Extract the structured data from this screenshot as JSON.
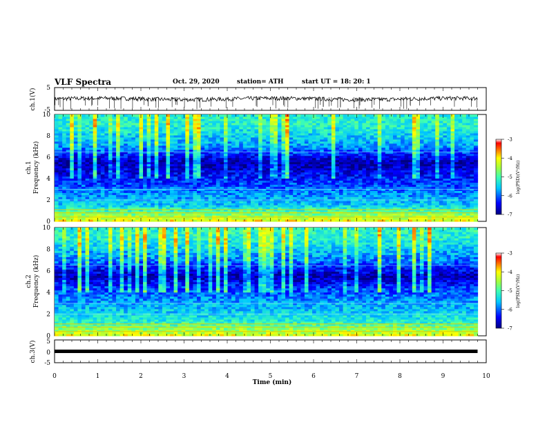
{
  "header": {
    "title": "VLF Spectra",
    "date": "Oct. 29, 2020",
    "station": "station= ATH",
    "start": "start  UT =   18: 20: 1"
  },
  "colorbar": {
    "label": "log(PSD)(V²/Hz)",
    "ticks": [
      "-3",
      "-4",
      "-5",
      "-6",
      "-7"
    ]
  },
  "chart_data": [
    {
      "type": "line",
      "panel": "ch1-waveform",
      "ylabel": "ch.1(V)",
      "ylim": [
        -5,
        5
      ],
      "yticks": [
        "5",
        "-5"
      ],
      "xlim": [
        0,
        10
      ],
      "x_range_min": [
        0,
        9.8
      ],
      "y_band_approx": [
        -1,
        1
      ]
    },
    {
      "type": "heatmap",
      "panel": "ch1-spectrogram",
      "ylabel": "ch.1 Frequency (kHz)",
      "ylim": [
        0,
        10
      ],
      "yticks": [
        "0",
        "2",
        "4",
        "6",
        "8",
        "10"
      ],
      "xlim": [
        0,
        10
      ],
      "data_x_extent": [
        0,
        9.8
      ],
      "zlabel": "log(PSD)(V²/Hz)",
      "zlim": [
        -7,
        -3
      ],
      "approx_level_by_frequency_kHz": [
        {
          "f": 0.5,
          "log_psd": -4.5
        },
        {
          "f": 1.5,
          "log_psd": -5.5
        },
        {
          "f": 2.5,
          "log_psd": -5.8
        },
        {
          "f": 4.0,
          "log_psd": -6.3
        },
        {
          "f": 5.5,
          "log_psd": -6.8
        },
        {
          "f": 7.0,
          "log_psd": -5.8
        },
        {
          "f": 9.0,
          "log_psd": -5.2
        }
      ]
    },
    {
      "type": "heatmap",
      "panel": "ch2-spectrogram",
      "ylabel": "ch.2 Frequency (kHz)",
      "ylim": [
        0,
        10
      ],
      "yticks": [
        "0",
        "2",
        "4",
        "6",
        "8",
        "10"
      ],
      "xlim": [
        0,
        10
      ],
      "data_x_extent": [
        0,
        9.8
      ],
      "zlabel": "log(PSD)(V²/Hz)",
      "zlim": [
        -7,
        -3
      ],
      "approx_level_by_frequency_kHz": [
        {
          "f": 0.5,
          "log_psd": -4.5
        },
        {
          "f": 1.5,
          "log_psd": -5.3
        },
        {
          "f": 3.0,
          "log_psd": -5.7
        },
        {
          "f": 4.5,
          "log_psd": -6.2
        },
        {
          "f": 5.5,
          "log_psd": -6.8
        },
        {
          "f": 7.0,
          "log_psd": -5.9
        },
        {
          "f": 9.0,
          "log_psd": -5.2
        }
      ]
    },
    {
      "type": "line",
      "panel": "ch3-waveform",
      "ylabel": "ch.3(V)",
      "ylim": [
        -5,
        5
      ],
      "yticks": [
        "5",
        "0",
        "-5"
      ],
      "xlim": [
        0,
        10
      ],
      "xlabel": "Time  (min)",
      "xticks": [
        "0",
        "1",
        "2",
        "3",
        "4",
        "5",
        "6",
        "7",
        "8",
        "9",
        "10"
      ],
      "x_range_min": [
        0,
        9.8
      ],
      "y_value_approx": 0
    }
  ]
}
